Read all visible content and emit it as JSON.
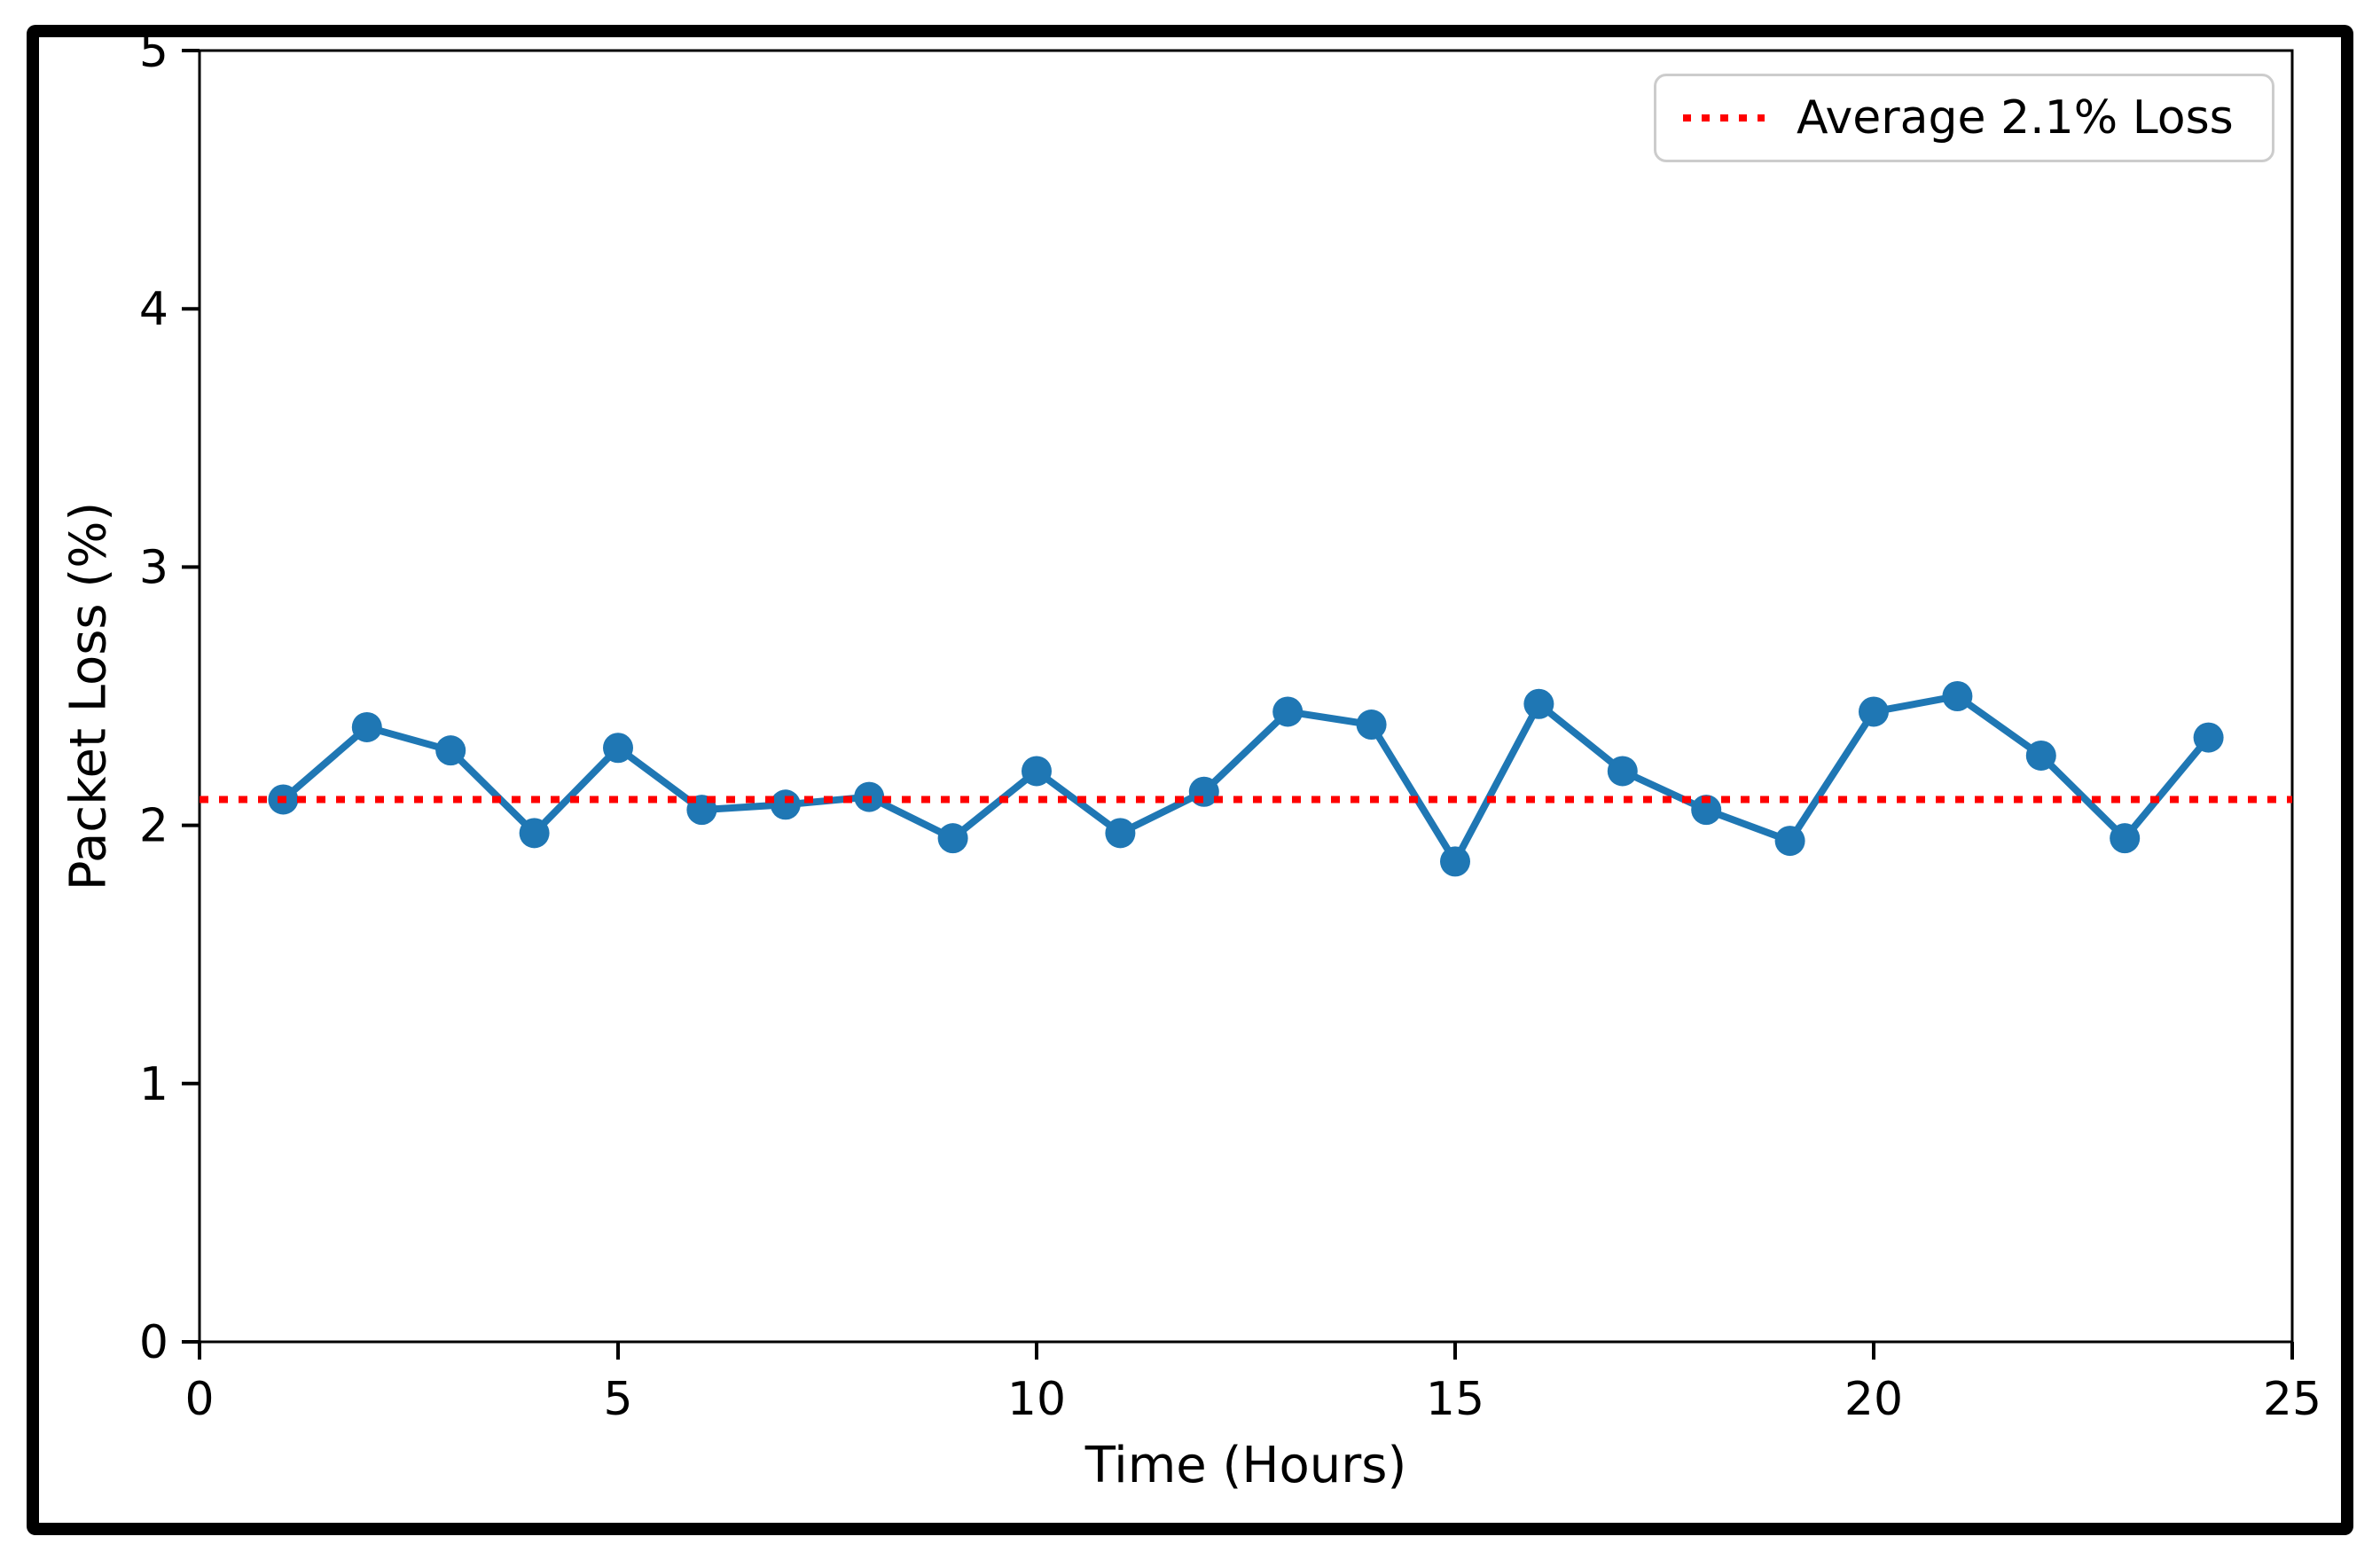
{
  "figure": {
    "background": "#ffffff",
    "border_color": "#000000"
  },
  "legend": {
    "label": "Average 2.1% Loss",
    "position": "upper right",
    "border_color": "#cccccc"
  },
  "chart_data": {
    "type": "line",
    "title": "",
    "xlabel": "Time (Hours)",
    "ylabel": "Packet Loss (%)",
    "x": [
      1,
      2,
      3,
      4,
      5,
      6,
      7,
      8,
      9,
      10,
      11,
      12,
      13,
      14,
      15,
      16,
      17,
      18,
      19,
      20,
      21,
      22,
      23,
      24
    ],
    "series": [
      {
        "name": "Packet Loss",
        "values": [
          2.1,
          2.38,
          2.29,
          1.97,
          2.3,
          2.06,
          2.08,
          2.11,
          1.95,
          2.21,
          1.97,
          2.13,
          2.44,
          2.39,
          1.86,
          2.47,
          2.21,
          2.06,
          1.94,
          2.44,
          2.5,
          2.27,
          1.95,
          2.34
        ],
        "color": "#1f77b4",
        "marker": "circle",
        "line_style": "solid"
      }
    ],
    "average_line": {
      "value": 2.1,
      "label": "Average 2.1% Loss",
      "color": "#ff0000",
      "line_style": "dotted"
    },
    "xlim": [
      0,
      25
    ],
    "ylim": [
      0,
      5
    ],
    "x_ticks": [
      0,
      5,
      10,
      15,
      20,
      25
    ],
    "y_ticks": [
      0,
      1,
      2,
      3,
      4,
      5
    ],
    "grid": false,
    "legend_position": "upper right",
    "colors": {
      "series": "#1f77b4",
      "average": "#ff0000",
      "axis": "#000000",
      "legend_border": "#cccccc"
    }
  }
}
